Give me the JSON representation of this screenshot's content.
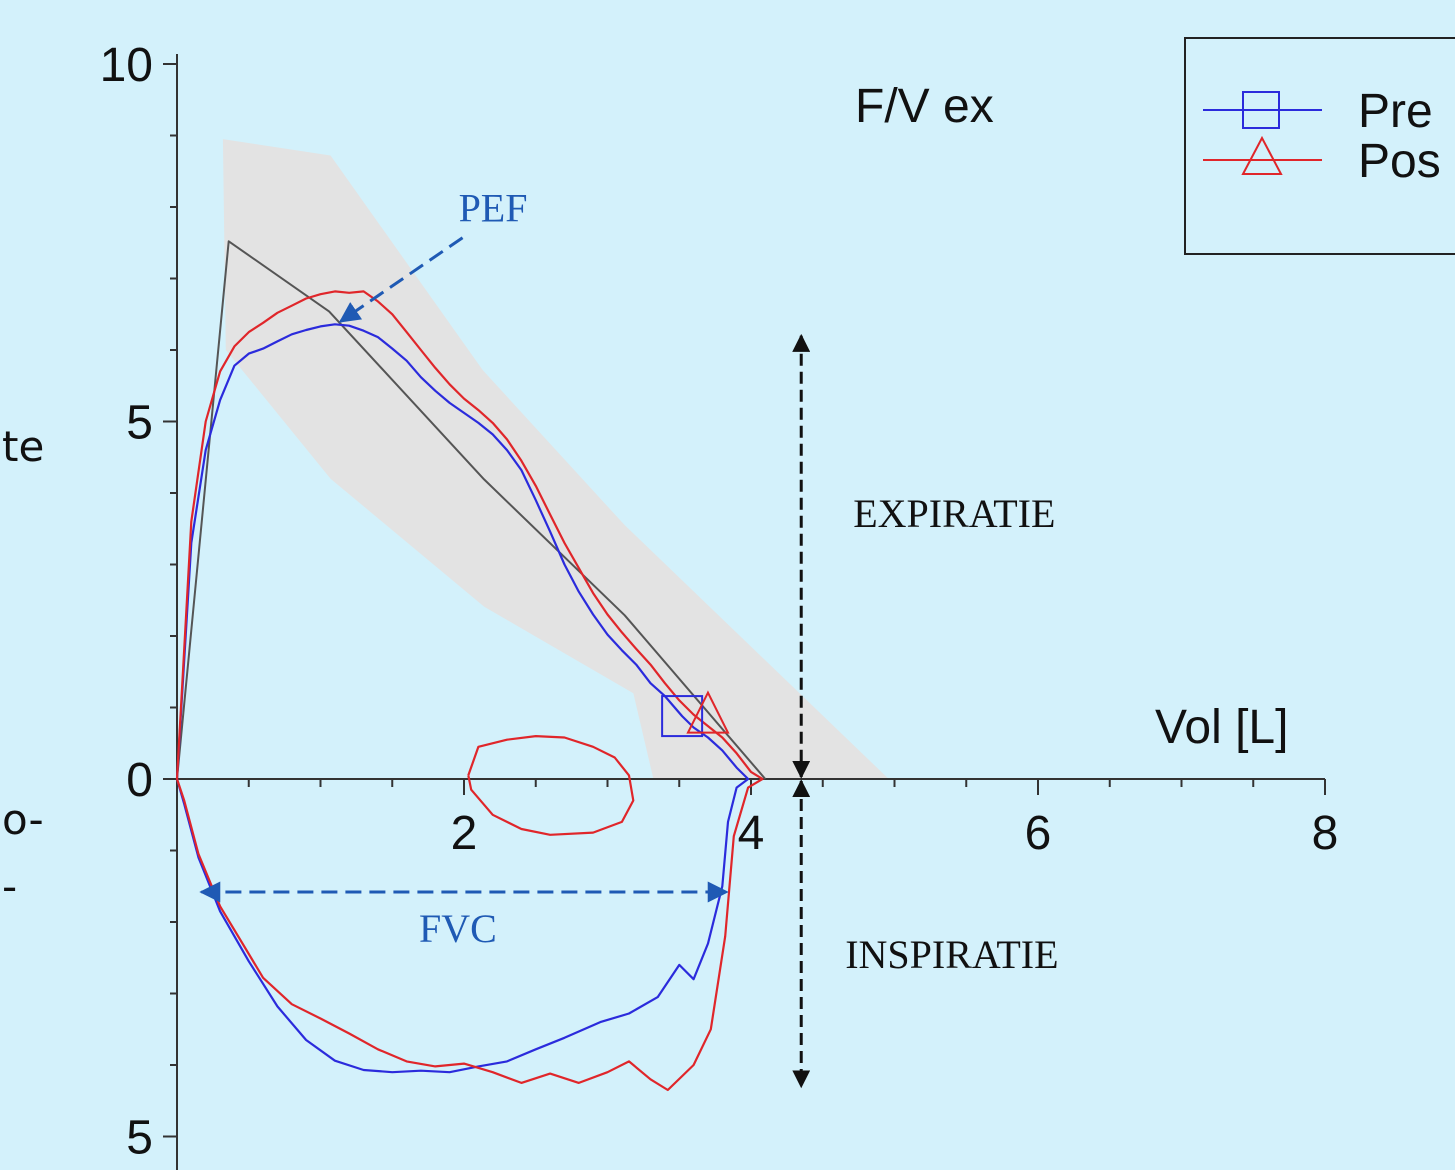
{
  "side_fragments": [
    "te",
    "o-",
    "-"
  ],
  "colors": {
    "background": "#d3f1fb",
    "pre": "#2b2bdc",
    "post": "#e0262a",
    "predicted": "#555555",
    "band": "#e3e3e3",
    "annotation_blue": "#1f5ab4",
    "marker": "#111111"
  },
  "chart_data": {
    "type": "line",
    "title": "F/V ex",
    "xlabel": "Vol [L]",
    "ylabel": "",
    "xlim": [
      0,
      8
    ],
    "ylim": [
      -5,
      10
    ],
    "x_ticks": [
      {
        "value": 2,
        "label": "2"
      },
      {
        "value": 4,
        "label": "4"
      },
      {
        "value": 6,
        "label": "6"
      },
      {
        "value": 8,
        "label": "8"
      }
    ],
    "y_ticks": [
      {
        "value": 10,
        "label": "10"
      },
      {
        "value": 5,
        "label": "5"
      },
      {
        "value": 0,
        "label": "0"
      },
      {
        "value": -5,
        "label": "5"
      }
    ],
    "legend": {
      "position": "top-right",
      "entries": [
        {
          "label": "Pre",
          "marker": "square",
          "color_key": "pre"
        },
        {
          "label": "Pos",
          "marker": "triangle",
          "color_key": "post"
        }
      ]
    },
    "annotations": {
      "pef": {
        "label": "PEF",
        "from": [
          1.99,
          7.57
        ],
        "to": [
          1.14,
          6.4
        ]
      },
      "fvc": {
        "label": "FVC",
        "y": -1.58,
        "x_start": 0.17,
        "x_end": 3.83
      },
      "expiration": {
        "label": "EXPIRATIE",
        "x": 4.35,
        "y_top": 6.2,
        "y_bottom": 0
      },
      "inspiration": {
        "label": "INSPIRATIE",
        "x": 4.35,
        "y_top": 0,
        "y_bottom": -4.3
      }
    },
    "predicted_band": [
      [
        0.32,
        8.95
      ],
      [
        1.07,
        8.72
      ],
      [
        2.13,
        5.72
      ],
      [
        3.12,
        3.55
      ],
      [
        4.96,
        0
      ],
      [
        3.32,
        0
      ],
      [
        3.18,
        1.2
      ],
      [
        2.14,
        2.41
      ],
      [
        1.07,
        4.2
      ],
      [
        0.34,
        6.0
      ]
    ],
    "series": [
      {
        "name": "",
        "color_key": "predicted",
        "points": [
          [
            0,
            0
          ],
          [
            0.36,
            7.52
          ],
          [
            1.06,
            6.54
          ],
          [
            2.14,
            4.19
          ],
          [
            3.12,
            2.29
          ],
          [
            4.1,
            0
          ]
        ]
      },
      {
        "name": "Pre",
        "color_key": "pre",
        "marker_point": [
          3.52,
          0.88
        ],
        "points": [
          [
            0,
            0
          ],
          [
            0.1,
            3.3
          ],
          [
            0.2,
            4.6
          ],
          [
            0.3,
            5.3
          ],
          [
            0.4,
            5.78
          ],
          [
            0.5,
            5.95
          ],
          [
            0.6,
            6.02
          ],
          [
            0.7,
            6.12
          ],
          [
            0.8,
            6.22
          ],
          [
            0.9,
            6.28
          ],
          [
            1.0,
            6.33
          ],
          [
            1.1,
            6.36
          ],
          [
            1.2,
            6.34
          ],
          [
            1.3,
            6.27
          ],
          [
            1.4,
            6.18
          ],
          [
            1.5,
            6.02
          ],
          [
            1.6,
            5.85
          ],
          [
            1.7,
            5.62
          ],
          [
            1.8,
            5.43
          ],
          [
            1.9,
            5.26
          ],
          [
            2.0,
            5.12
          ],
          [
            2.1,
            4.98
          ],
          [
            2.2,
            4.82
          ],
          [
            2.3,
            4.6
          ],
          [
            2.4,
            4.32
          ],
          [
            2.5,
            3.9
          ],
          [
            2.6,
            3.46
          ],
          [
            2.7,
            3.0
          ],
          [
            2.8,
            2.62
          ],
          [
            2.9,
            2.3
          ],
          [
            3.0,
            2.02
          ],
          [
            3.1,
            1.8
          ],
          [
            3.2,
            1.6
          ],
          [
            3.3,
            1.34
          ],
          [
            3.4,
            1.16
          ],
          [
            3.52,
            0.88
          ],
          [
            3.6,
            0.72
          ],
          [
            3.7,
            0.58
          ],
          [
            3.8,
            0.4
          ],
          [
            3.9,
            0.16
          ],
          [
            3.98,
            0
          ],
          [
            3.9,
            -0.12
          ],
          [
            3.84,
            -0.6
          ],
          [
            3.8,
            -1.5
          ],
          [
            3.7,
            -2.3
          ],
          [
            3.6,
            -2.8
          ],
          [
            3.5,
            -2.6
          ],
          [
            3.35,
            -3.05
          ],
          [
            3.15,
            -3.28
          ],
          [
            2.95,
            -3.4
          ],
          [
            2.7,
            -3.62
          ],
          [
            2.5,
            -3.78
          ],
          [
            2.3,
            -3.95
          ],
          [
            2.1,
            -4.02
          ],
          [
            1.9,
            -4.1
          ],
          [
            1.7,
            -4.08
          ],
          [
            1.5,
            -4.1
          ],
          [
            1.3,
            -4.07
          ],
          [
            1.1,
            -3.94
          ],
          [
            0.9,
            -3.65
          ],
          [
            0.7,
            -3.18
          ],
          [
            0.5,
            -2.55
          ],
          [
            0.3,
            -1.85
          ],
          [
            0.15,
            -1.1
          ],
          [
            0.05,
            -0.35
          ],
          [
            0,
            0
          ]
        ]
      },
      {
        "name": "Pos",
        "color_key": "post",
        "marker_point": [
          3.7,
          0.9
        ],
        "points": [
          [
            0,
            0
          ],
          [
            0.1,
            3.6
          ],
          [
            0.2,
            5.0
          ],
          [
            0.3,
            5.7
          ],
          [
            0.4,
            6.05
          ],
          [
            0.5,
            6.25
          ],
          [
            0.6,
            6.38
          ],
          [
            0.7,
            6.52
          ],
          [
            0.8,
            6.62
          ],
          [
            0.9,
            6.72
          ],
          [
            1.0,
            6.78
          ],
          [
            1.1,
            6.82
          ],
          [
            1.2,
            6.8
          ],
          [
            1.3,
            6.82
          ],
          [
            1.4,
            6.68
          ],
          [
            1.5,
            6.5
          ],
          [
            1.6,
            6.25
          ],
          [
            1.7,
            6.0
          ],
          [
            1.8,
            5.75
          ],
          [
            1.9,
            5.52
          ],
          [
            2.0,
            5.32
          ],
          [
            2.1,
            5.16
          ],
          [
            2.2,
            4.98
          ],
          [
            2.3,
            4.75
          ],
          [
            2.4,
            4.45
          ],
          [
            2.5,
            4.1
          ],
          [
            2.6,
            3.7
          ],
          [
            2.7,
            3.3
          ],
          [
            2.8,
            2.95
          ],
          [
            2.9,
            2.6
          ],
          [
            3.0,
            2.3
          ],
          [
            3.1,
            2.05
          ],
          [
            3.2,
            1.82
          ],
          [
            3.3,
            1.6
          ],
          [
            3.4,
            1.34
          ],
          [
            3.5,
            1.1
          ],
          [
            3.6,
            0.9
          ],
          [
            3.7,
            0.74
          ],
          [
            3.8,
            0.58
          ],
          [
            3.9,
            0.36
          ],
          [
            4.0,
            0.1
          ],
          [
            4.08,
            0
          ],
          [
            3.98,
            -0.12
          ],
          [
            3.88,
            -0.8
          ],
          [
            3.82,
            -2.2
          ],
          [
            3.72,
            -3.5
          ],
          [
            3.6,
            -4.0
          ],
          [
            3.42,
            -4.35
          ],
          [
            3.3,
            -4.2
          ],
          [
            3.15,
            -3.95
          ],
          [
            3.0,
            -4.1
          ],
          [
            2.8,
            -4.25
          ],
          [
            2.6,
            -4.12
          ],
          [
            2.4,
            -4.25
          ],
          [
            2.2,
            -4.1
          ],
          [
            2.0,
            -3.98
          ],
          [
            1.8,
            -4.02
          ],
          [
            1.6,
            -3.95
          ],
          [
            1.4,
            -3.78
          ],
          [
            1.2,
            -3.56
          ],
          [
            1.0,
            -3.35
          ],
          [
            0.8,
            -3.15
          ],
          [
            0.6,
            -2.78
          ],
          [
            0.45,
            -2.28
          ],
          [
            0.3,
            -1.78
          ],
          [
            0.15,
            -1.05
          ],
          [
            0.05,
            -0.3
          ],
          [
            0,
            0
          ]
        ]
      },
      {
        "name": "",
        "color_key": "post",
        "points": [
          [
            2.03,
            0.05
          ],
          [
            2.1,
            0.45
          ],
          [
            2.3,
            0.55
          ],
          [
            2.5,
            0.6
          ],
          [
            2.7,
            0.58
          ],
          [
            2.9,
            0.45
          ],
          [
            3.05,
            0.3
          ],
          [
            3.15,
            0.05
          ],
          [
            3.18,
            -0.3
          ],
          [
            3.1,
            -0.6
          ],
          [
            2.9,
            -0.75
          ],
          [
            2.6,
            -0.78
          ],
          [
            2.4,
            -0.7
          ],
          [
            2.2,
            -0.5
          ],
          [
            2.05,
            -0.15
          ],
          [
            2.03,
            0.05
          ]
        ]
      }
    ]
  }
}
